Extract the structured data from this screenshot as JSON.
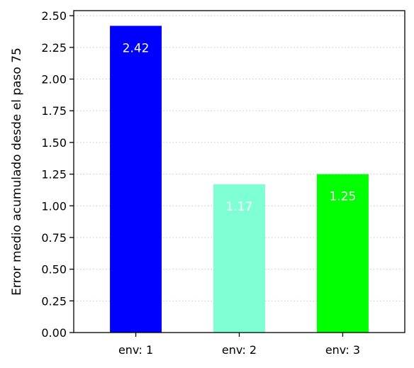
{
  "chart_data": {
    "type": "bar",
    "categories": [
      "env: 1",
      "env: 2",
      "env: 3"
    ],
    "values": [
      2.42,
      1.17,
      1.25
    ],
    "data_labels": [
      "2.42",
      "1.17",
      "1.25"
    ],
    "bar_colors": [
      "#0000ff",
      "#7fffd4",
      "#00ff00"
    ],
    "title": "",
    "xlabel": "",
    "ylabel": "Error medio acumulado desde el paso 75",
    "ylim": [
      0,
      2.54
    ],
    "yticks": [
      0.0,
      0.25,
      0.5,
      0.75,
      1.0,
      1.25,
      1.5,
      1.75,
      2.0,
      2.25,
      2.5
    ],
    "ytick_labels": [
      "0.00",
      "0.25",
      "0.50",
      "0.75",
      "1.00",
      "1.25",
      "1.50",
      "1.75",
      "2.00",
      "2.25",
      "2.50"
    ],
    "grid": "y-dotted",
    "legend": "none"
  }
}
